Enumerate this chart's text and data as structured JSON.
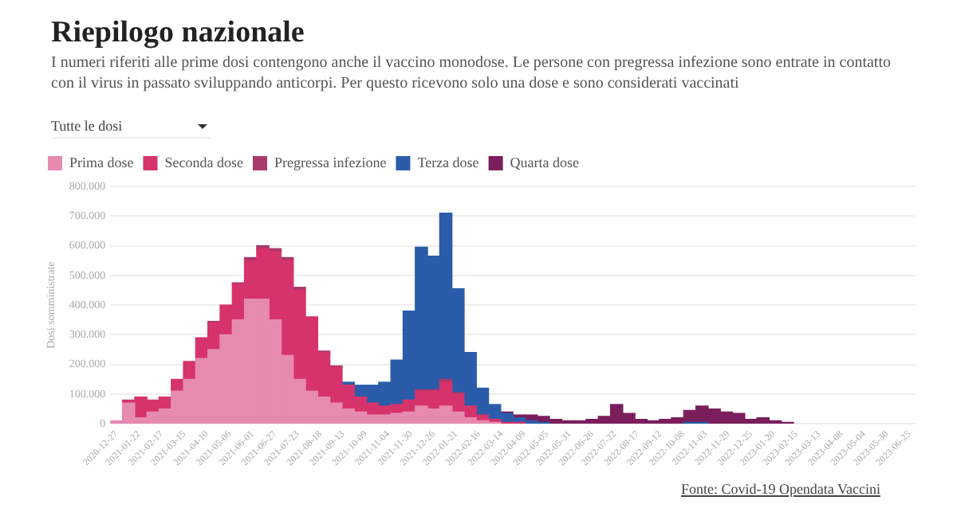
{
  "chart_data": {
    "type": "bar",
    "title": "Riepilogo nazionale",
    "subtitle": "I numeri riferiti alle prime dosi contengono anche il vaccino monodose. Le persone con pregressa infezione sono entrate in contatto con il virus in passato sviluppando anticorpi. Per questo ricevono solo una dose e sono considerati vaccinati",
    "annotations": [
      "Tutte le dosi",
      "Fonte: Covid-19 Opendata Vaccini"
    ],
    "ylabel": "Dosi somministrate",
    "stacked": true,
    "grid": "y",
    "legend": "top left",
    "x": [
      "2020-12-27",
      "2021-01-10",
      "2021-01-24",
      "2021-02-07",
      "2021-02-21",
      "2021-03-07",
      "2021-03-21",
      "2021-04-04",
      "2021-04-18",
      "2021-05-02",
      "2021-05-16",
      "2021-05-30",
      "2021-06-13",
      "2021-06-27",
      "2021-07-11",
      "2021-07-25",
      "2021-08-08",
      "2021-08-22",
      "2021-09-05",
      "2021-09-19",
      "2021-10-03",
      "2021-10-17",
      "2021-10-31",
      "2021-11-14",
      "2021-11-28",
      "2021-12-12",
      "2021-12-26",
      "2022-01-09",
      "2022-01-23",
      "2022-02-06",
      "2022-02-20",
      "2022-03-06",
      "2022-03-20",
      "2022-04-03",
      "2022-04-17",
      "2022-05-01",
      "2022-05-15",
      "2022-05-29",
      "2022-06-12",
      "2022-06-26",
      "2022-07-10",
      "2022-07-24",
      "2022-08-07",
      "2022-08-21",
      "2022-09-04",
      "2022-09-18",
      "2022-10-02",
      "2022-10-16",
      "2022-10-30",
      "2022-11-13",
      "2022-11-27",
      "2022-12-11",
      "2022-12-25",
      "2023-01-08",
      "2023-01-22",
      "2023-02-05",
      "2023-02-19",
      "2023-03-05",
      "2023-03-19",
      "2023-04-02",
      "2023-04-16",
      "2023-04-30",
      "2023-05-14",
      "2023-05-28",
      "2023-06-11",
      "2023-06-25"
    ],
    "xlim": [
      "2020-12-20",
      "2023-07-02"
    ],
    "xticks": [
      "2020-12-27",
      "2021-01-22",
      "2021-02-17",
      "2021-03-15",
      "2021-04-10",
      "2021-05-06",
      "2021-06-01",
      "2021-06-27",
      "2021-07-23",
      "2021-08-18",
      "2021-09-13",
      "2021-10-09",
      "2021-11-04",
      "2021-11-30",
      "2021-12-26",
      "2022-01-21",
      "2022-02-16",
      "2022-03-14",
      "2022-04-09",
      "2022-05-05",
      "2022-05-31",
      "2022-06-26",
      "2022-07-22",
      "2022-08-17",
      "2022-09-12",
      "2022-10-08",
      "2022-11-03",
      "2022-11-29",
      "2022-12-25",
      "2023-01-20",
      "2023-02-15",
      "2023-03-13",
      "2023-04-08",
      "2023-05-04",
      "2023-05-30",
      "2023-06-25"
    ],
    "ylim": [
      0,
      800000
    ],
    "yticks": [
      0,
      {
        "value": 100000,
        "label": "100.000"
      },
      {
        "value": 200000,
        "label": "200.000"
      },
      {
        "value": 300000,
        "label": "300.000"
      },
      {
        "value": 400000,
        "label": "400.000"
      },
      {
        "value": 500000,
        "label": "500.000"
      },
      {
        "value": 600000,
        "label": "600.000"
      },
      {
        "value": 700000,
        "label": "700.000"
      },
      {
        "value": 800000,
        "label": "800.000"
      }
    ],
    "series": [
      {
        "name": "Prima dose",
        "color": "#e68ab0",
        "values": [
          10000,
          70000,
          20000,
          40000,
          50000,
          110000,
          150000,
          220000,
          250000,
          300000,
          350000,
          420000,
          420000,
          350000,
          230000,
          150000,
          110000,
          90000,
          70000,
          50000,
          40000,
          30000,
          30000,
          35000,
          40000,
          60000,
          50000,
          60000,
          40000,
          20000,
          10000,
          5000,
          0,
          0,
          0,
          0,
          0,
          0,
          0,
          0,
          0,
          0,
          0,
          0,
          0,
          0,
          0,
          0,
          0,
          0,
          0,
          0,
          0,
          0,
          0,
          0,
          0,
          0,
          0,
          0,
          0,
          0,
          0,
          0,
          0,
          0
        ]
      },
      {
        "name": "Seconda dose",
        "color": "#d6336c",
        "values": [
          0,
          10000,
          70000,
          40000,
          40000,
          40000,
          60000,
          70000,
          90000,
          100000,
          120000,
          130000,
          170000,
          230000,
          320000,
          300000,
          250000,
          150000,
          120000,
          80000,
          50000,
          40000,
          30000,
          30000,
          40000,
          50000,
          60000,
          80000,
          60000,
          40000,
          20000,
          10000,
          5000,
          5000,
          0,
          0,
          0,
          0,
          0,
          0,
          0,
          0,
          0,
          0,
          0,
          0,
          0,
          0,
          0,
          0,
          0,
          0,
          0,
          0,
          0,
          0,
          0,
          0,
          0,
          0,
          0,
          0,
          0,
          0,
          0,
          0
        ]
      },
      {
        "name": "Pregressa infezione",
        "color": "#a83a6c",
        "values": [
          0,
          0,
          0,
          0,
          0,
          0,
          0,
          0,
          5000,
          null,
          5000,
          10000,
          10000,
          10000,
          10000,
          10000,
          null,
          5000,
          5000,
          0,
          0,
          0,
          0,
          0,
          0,
          5000,
          5000,
          10000,
          5000,
          0,
          0,
          0,
          0,
          0,
          0,
          0,
          0,
          0,
          0,
          0,
          0,
          0,
          0,
          0,
          0,
          0,
          0,
          0,
          0,
          0,
          0,
          0,
          0,
          0,
          0,
          0,
          0,
          0,
          0,
          0,
          0,
          0,
          0,
          0,
          0,
          0
        ]
      },
      {
        "name": "Terza dose",
        "color": "#2a5caa",
        "values": [
          0,
          0,
          0,
          0,
          0,
          0,
          0,
          0,
          0,
          0,
          0,
          0,
          0,
          0,
          0,
          0,
          0,
          0,
          0,
          10000,
          40000,
          60000,
          80000,
          150000,
          300000,
          480000,
          450000,
          560000,
          350000,
          180000,
          90000,
          50000,
          30000,
          15000,
          10000,
          5000,
          0,
          0,
          0,
          0,
          0,
          0,
          0,
          0,
          0,
          0,
          0,
          5000,
          5000,
          0,
          0,
          0,
          0,
          0,
          0,
          0,
          0,
          0,
          0,
          0,
          0,
          0,
          0,
          0,
          0,
          0
        ]
      },
      {
        "name": "Quarta dose",
        "color": "#7a1f5c",
        "values": [
          0,
          0,
          0,
          0,
          0,
          0,
          0,
          0,
          0,
          0,
          0,
          0,
          0,
          0,
          0,
          0,
          0,
          0,
          0,
          0,
          0,
          0,
          0,
          0,
          0,
          0,
          0,
          0,
          0,
          0,
          0,
          0,
          5000,
          10000,
          20000,
          20000,
          15000,
          10000,
          10000,
          15000,
          25000,
          65000,
          35000,
          15000,
          10000,
          15000,
          20000,
          40000,
          55000,
          50000,
          40000,
          35000,
          15000,
          20000,
          10000,
          5000,
          0,
          0,
          0,
          0,
          0,
          0,
          0,
          0,
          0,
          0
        ]
      }
    ]
  }
}
